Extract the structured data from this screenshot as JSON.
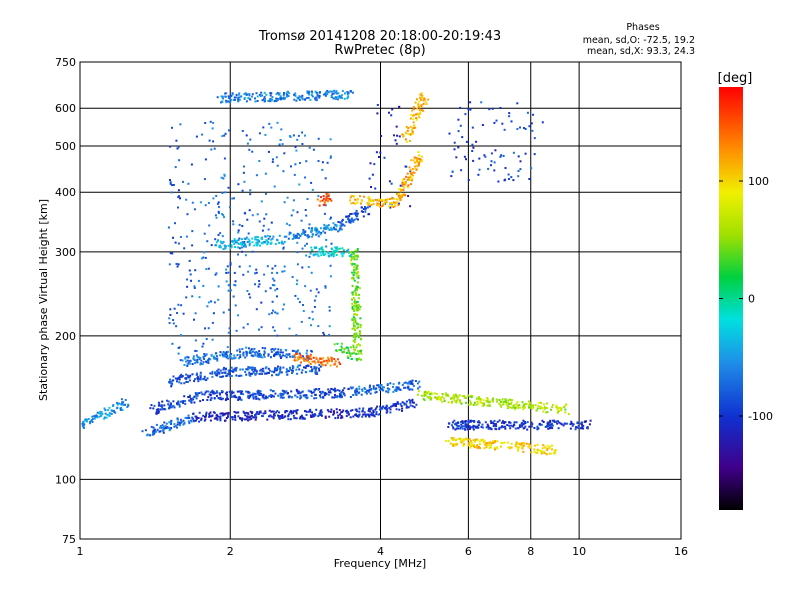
{
  "chart_data": {
    "type": "scatter",
    "title": "Tromsø 20141208 20:18:00-20:19:43",
    "subtitle": "RwPretec (8p)",
    "xlabel": "Frequency [MHz]",
    "ylabel": "Stationary phase Virtual Height [km]",
    "x_scale": "log",
    "y_scale": "log",
    "xlim": [
      1,
      16
    ],
    "ylim": [
      75,
      750
    ],
    "x_ticks": [
      "1",
      "2",
      "4",
      "6",
      "8",
      "10",
      "16"
    ],
    "x_tick_values": [
      1,
      2,
      4,
      6,
      8,
      10,
      16
    ],
    "y_ticks": [
      "75",
      "100",
      "200",
      "300",
      "400",
      "500",
      "600",
      "750"
    ],
    "y_tick_values": [
      75,
      100,
      200,
      300,
      400,
      500,
      600,
      750
    ],
    "grid": true,
    "info_title": "Phases",
    "info_lines": [
      "mean, sd,O: -72.5, 19.2",
      "mean, sd,X:  93.3, 24.3"
    ],
    "colorbar": {
      "label": "[deg]",
      "range": [
        -180,
        180
      ],
      "ticks": [
        "100",
        "0",
        "-100"
      ],
      "tick_values": [
        100,
        0,
        -100
      ]
    },
    "series": [
      {
        "x": [
          1.35,
          1.7
        ],
        "y": [
          125,
          135
        ],
        "phase": -75
      },
      {
        "x": [
          1.7,
          3.8
        ],
        "y": [
          135,
          138
        ],
        "phase": -110
      },
      {
        "x": [
          3.8,
          4.7
        ],
        "y": [
          138,
          145
        ],
        "phase": -100
      },
      {
        "x": [
          1.4,
          1.75
        ],
        "y": [
          140,
          150
        ],
        "phase": -90
      },
      {
        "x": [
          1.75,
          2.1
        ],
        "y": [
          150,
          150
        ],
        "phase": -95
      },
      {
        "x": [
          2.1,
          3.5
        ],
        "y": [
          150,
          152
        ],
        "phase": -90
      },
      {
        "x": [
          3.5,
          4.8
        ],
        "y": [
          153,
          158
        ],
        "phase": -70
      },
      {
        "x": [
          1.5,
          2.0
        ],
        "y": [
          160,
          168
        ],
        "phase": -85
      },
      {
        "x": [
          2.0,
          3.0
        ],
        "y": [
          168,
          170
        ],
        "phase": -80
      },
      {
        "x": [
          1.6,
          2.2
        ],
        "y": [
          176,
          185
        ],
        "phase": -70
      },
      {
        "x": [
          2.2,
          2.9
        ],
        "y": [
          185,
          182
        ],
        "phase": -75
      },
      {
        "x": [
          2.7,
          3.3
        ],
        "y": [
          180,
          175
        ],
        "phase": 140
      },
      {
        "x": [
          3.3,
          3.6
        ],
        "y": [
          190,
          180
        ],
        "phase": 30
      },
      {
        "x": [
          3.6,
          3.55
        ],
        "y": [
          180,
          300
        ],
        "phase": 40
      },
      {
        "x": [
          1.5,
          1.7
        ],
        "y": [
          180,
          560
        ],
        "phase": -80
      },
      {
        "x": [
          1.7,
          2.0
        ],
        "y": [
          180,
          580
        ],
        "phase": -70
      },
      {
        "x": [
          2.0,
          2.6
        ],
        "y": [
          200,
          560
        ],
        "phase": -75
      },
      {
        "x": [
          2.6,
          3.2
        ],
        "y": [
          200,
          540
        ],
        "phase": -70
      },
      {
        "x": [
          1.9,
          2.6
        ],
        "y": [
          310,
          320
        ],
        "phase": -40
      },
      {
        "x": [
          2.6,
          3.3
        ],
        "y": [
          320,
          340
        ],
        "phase": -60
      },
      {
        "x": [
          3.3,
          3.8
        ],
        "y": [
          340,
          370
        ],
        "phase": -90
      },
      {
        "x": [
          3.8,
          4.6
        ],
        "y": [
          370,
          470
        ],
        "phase": -110
      },
      {
        "x": [
          3.5,
          4.3
        ],
        "y": [
          385,
          380
        ],
        "phase": 110
      },
      {
        "x": [
          4.3,
          4.8
        ],
        "y": [
          380,
          480
        ],
        "phase": 115
      },
      {
        "x": [
          4.5,
          4.9
        ],
        "y": [
          520,
          640
        ],
        "phase": 110
      },
      {
        "x": [
          3.9,
          4.4
        ],
        "y": [
          460,
          620
        ],
        "phase": -110
      },
      {
        "x": [
          1.9,
          3.5
        ],
        "y": [
          630,
          640
        ],
        "phase": -60
      },
      {
        "x": [
          3.0,
          3.2
        ],
        "y": [
          380,
          390
        ],
        "phase": 150
      },
      {
        "x": [
          2.9,
          3.5
        ],
        "y": [
          300,
          300
        ],
        "phase": -20
      },
      {
        "x": [
          4.8,
          9.5
        ],
        "y": [
          150,
          140
        ],
        "phase": 60
      },
      {
        "x": [
          5.5,
          10.5
        ],
        "y": [
          130,
          130
        ],
        "phase": -100
      },
      {
        "x": [
          5.5,
          9.0
        ],
        "y": [
          120,
          115
        ],
        "phase": 100
      },
      {
        "x": [
          5.5,
          8.5
        ],
        "y": [
          420,
          620
        ],
        "phase": -90
      },
      {
        "x": [
          1.0,
          1.25
        ],
        "y": [
          130,
          145
        ],
        "phase": -50
      }
    ]
  }
}
